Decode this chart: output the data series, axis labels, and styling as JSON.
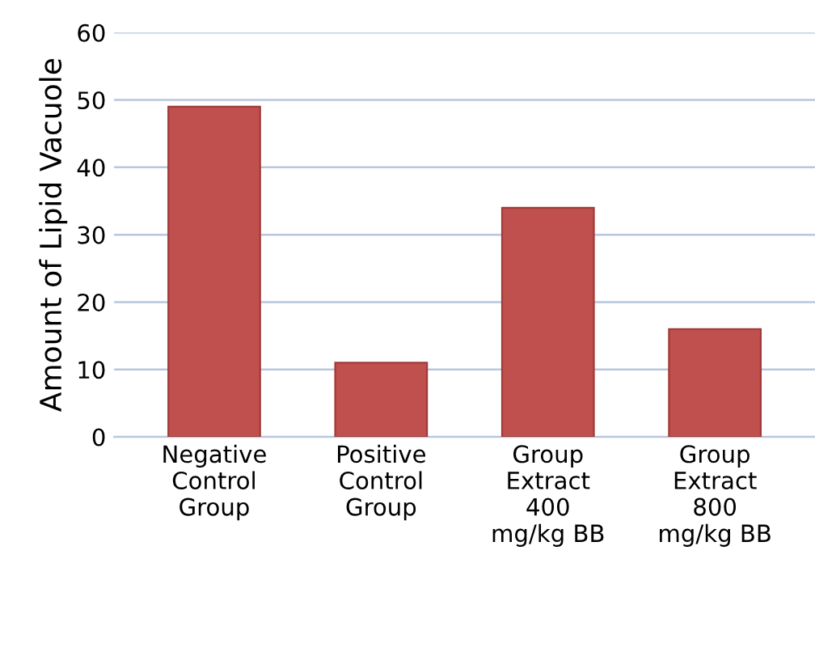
{
  "chart_data": {
    "type": "bar",
    "ylabel": "Amount of Lipid Vacuole",
    "categories": [
      "Negative\nControl\nGroup",
      "Positive\nControl\nGroup",
      "Group\nExtract\n400\nmg/kg BB",
      "Group\nExtract\n800\nmg/kg BB"
    ],
    "values": [
      49,
      11,
      34,
      16
    ],
    "color": "#c0504d",
    "ylim": [
      0,
      60
    ],
    "yticks": [
      0,
      10,
      20,
      30,
      40,
      50,
      60
    ],
    "grid": "y"
  }
}
